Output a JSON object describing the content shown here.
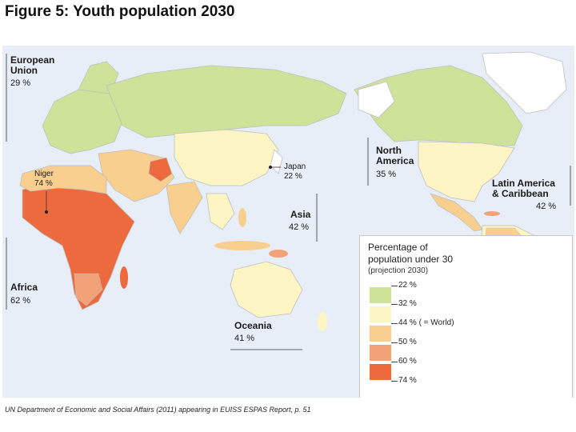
{
  "title": "Figure 5: Youth population 2030",
  "regions": {
    "eu": {
      "name_line1": "European",
      "name_line2": "Union",
      "pct": "29 %"
    },
    "niger": {
      "name": "Niger",
      "pct": "74 %"
    },
    "africa": {
      "name": "Africa",
      "pct": "62 %"
    },
    "japan": {
      "name": "Japan",
      "pct": "22 %"
    },
    "asia": {
      "name": "Asia",
      "pct": "42 %"
    },
    "north_america": {
      "name_line1": "North",
      "name_line2": "America",
      "pct": "35 %"
    },
    "latin_america": {
      "name_line1": "Latin America",
      "name_line2": "& Caribbean",
      "pct": "42 %"
    },
    "oceania": {
      "name": "Oceania",
      "pct": "41 %"
    }
  },
  "legend": {
    "title_line1": "Percentage of",
    "title_line2": "population under 30",
    "subtitle": "(projection 2030)",
    "items": [
      {
        "label": "22 %",
        "color": "#ffffff"
      },
      {
        "label": "32 %",
        "color": "#cfe29a"
      },
      {
        "label": "44 %  ( = World)",
        "color": "#fdf5c4"
      },
      {
        "label": "50 %",
        "color": "#f9cf8f"
      },
      {
        "label": "60 %",
        "color": "#f1a277"
      },
      {
        "label": "74 %",
        "color": "#ec6a3d"
      }
    ]
  },
  "colors": {
    "ocean": "#e8eef7",
    "green": "#cfe29a",
    "light": "#fdf5c4",
    "orange_light": "#f9cf8f",
    "orange_mid": "#f1a277",
    "orange_dark": "#ec6a3d"
  },
  "caption": "UN Department of Economic and Social Affairs (2011) appearing in EUISS ESPAS Report, p. 51"
}
